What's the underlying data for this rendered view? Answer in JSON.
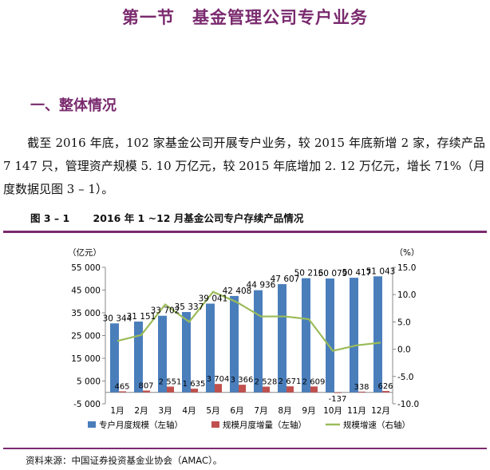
{
  "section_title": "第一节　基金管理公司专户业务",
  "sub_heading": "一、整体情况",
  "paragraph": "截至 2016 年底，102 家基金公司开展专户业务，较 2015 年底新增 2 家，存续产品 7 147 只，管理资产规模 5. 10 万亿元，较 2015 年底增加 2. 12 万亿元，增长 71%（月度数据见图 3 – 1）。",
  "figure_caption": "图 3 – 1　　 2016 年 1 ~12 月基金公司专户存续产品情况",
  "source": "资料来源：中国证券投资基金业协会（AMAC）。",
  "chart_data": {
    "type": "bar",
    "categories": [
      "1月",
      "2月",
      "3月",
      "4月",
      "5月",
      "6月",
      "7月",
      "8月",
      "9月",
      "10月",
      "11月",
      "12月"
    ],
    "y_left_unit": "（亿元）",
    "y_right_unit": "（%）",
    "y_left_ticks": [
      "55 000",
      "45 000",
      "35 000",
      "25 000",
      "15 000",
      "5 000",
      "-5 000"
    ],
    "y_right_ticks": [
      "15.0",
      "10.0",
      "5.0",
      "0.0",
      "-5.0",
      "-10.0"
    ],
    "ylim_left": [
      -5000,
      55000
    ],
    "ylim_right": [
      -10,
      15
    ],
    "series": [
      {
        "name": "专户月度规模（左轴）",
        "axis": "left",
        "kind": "bar",
        "color": "#4a7ebb",
        "values": [
          30344,
          31151,
          33702,
          35337,
          39041,
          42408,
          44936,
          47607,
          50216,
          50079,
          50417,
          51043
        ],
        "labels": [
          "30 344",
          "31 151",
          "33 702",
          "35 337",
          "39 041",
          "42 408",
          "44 936",
          "47 607",
          "50 216",
          "50 079",
          "50 417",
          "51 043"
        ]
      },
      {
        "name": "规模月度增量（左轴）",
        "axis": "left",
        "kind": "bar",
        "color": "#c0504d",
        "values": [
          465,
          807,
          2551,
          1635,
          3704,
          3366,
          2528,
          2671,
          2609,
          -137,
          338,
          626
        ],
        "labels": [
          "465",
          "807",
          "2 551",
          "1 635",
          "3 704",
          "3 366",
          "2 528",
          "2 671",
          "2 609",
          "-137",
          "338",
          "626"
        ]
      },
      {
        "name": "规模增速（右轴）",
        "axis": "right",
        "kind": "line",
        "color": "#9bbb59",
        "values": [
          1.5,
          2.6,
          8.2,
          5.0,
          10.5,
          8.6,
          6.0,
          6.0,
          5.5,
          -0.3,
          0.7,
          1.2
        ]
      }
    ],
    "legend_position": "bottom",
    "grid": false
  }
}
